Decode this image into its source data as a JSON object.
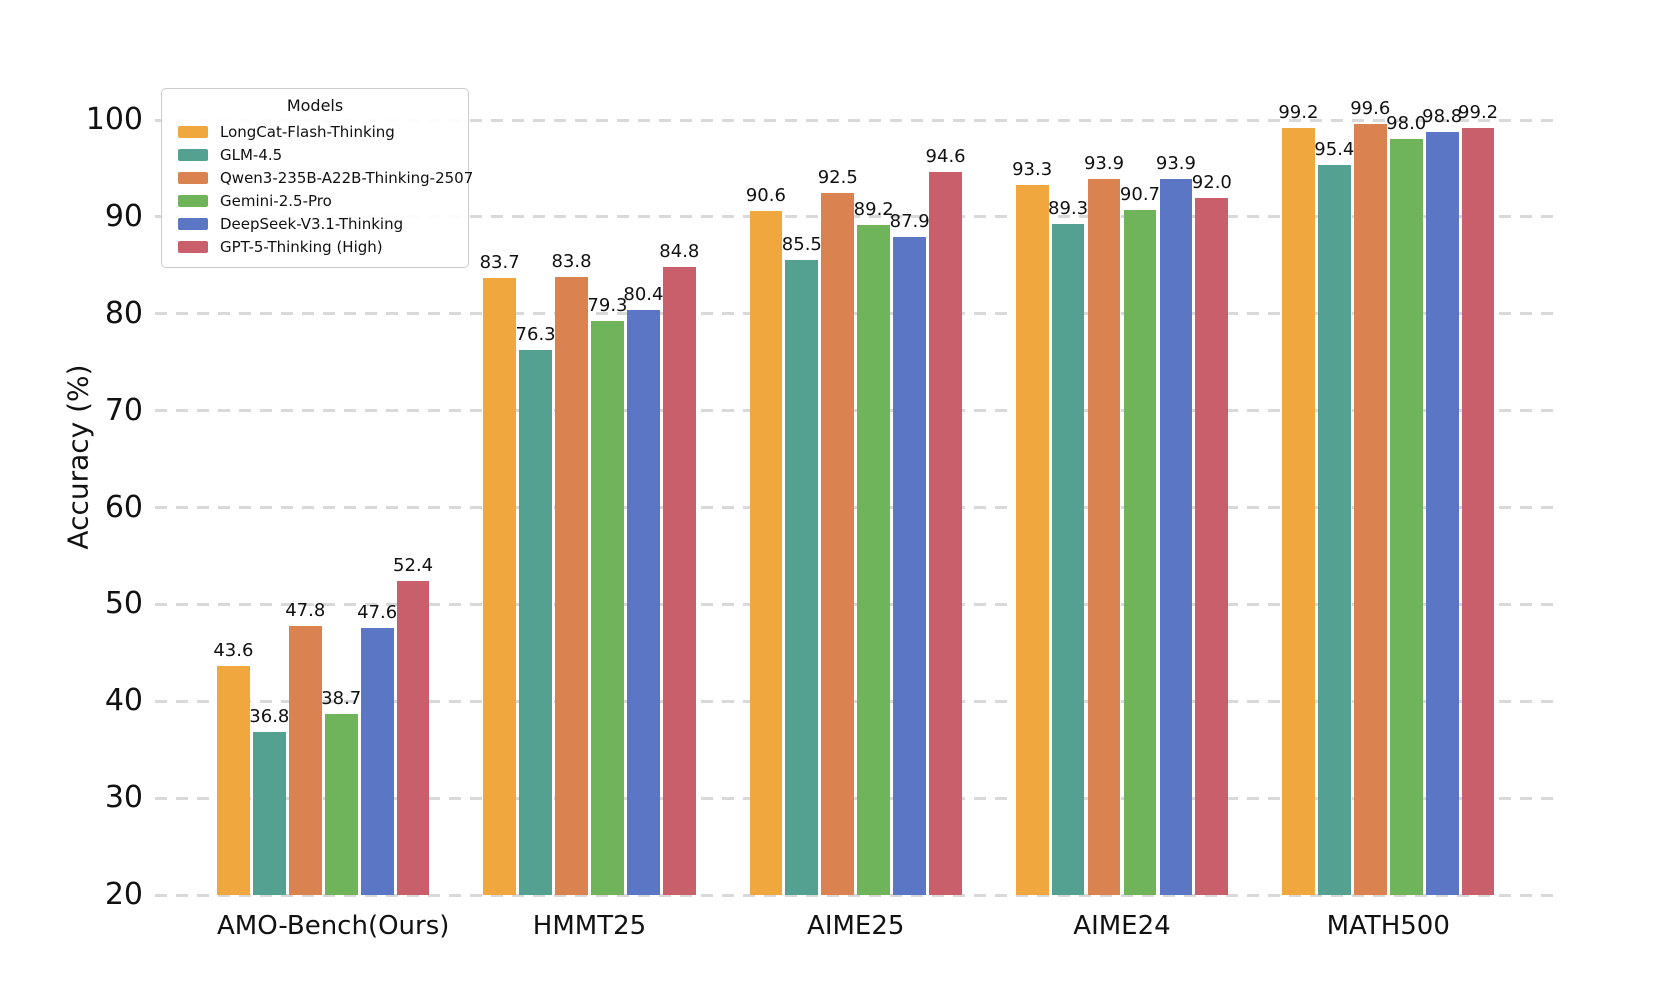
{
  "figure": {
    "background": "#ffffff"
  },
  "chart_data": {
    "type": "bar",
    "title": "",
    "ylabel": "Accuracy (%)",
    "xlabel": "",
    "ylim": [
      20,
      100
    ],
    "yticks": [
      20,
      30,
      40,
      50,
      60,
      70,
      80,
      90,
      100
    ],
    "grid": "horizontal-dashed",
    "grid_color": "#d9d9d9",
    "bar_label_decimals": 1,
    "legend_title": "Models",
    "legend_position": "upper-left",
    "categories": [
      "AMO-Bench(Ours)",
      "HMMT25",
      "AIME25",
      "AIME24",
      "MATH500"
    ],
    "series": [
      {
        "name": "LongCat-Flash-Thinking",
        "color": "#F0A73E",
        "values": [
          43.6,
          83.7,
          90.6,
          93.3,
          99.2
        ]
      },
      {
        "name": "GLM-4.5",
        "color": "#55A191",
        "values": [
          36.8,
          76.3,
          85.5,
          89.3,
          95.4
        ]
      },
      {
        "name": "Qwen3-235B-A22B-Thinking-2507",
        "color": "#DA8350",
        "values": [
          47.8,
          83.8,
          92.5,
          93.9,
          99.6
        ]
      },
      {
        "name": "Gemini-2.5-Pro",
        "color": "#6FB45A",
        "values": [
          38.7,
          79.3,
          89.2,
          90.7,
          98.0
        ]
      },
      {
        "name": "DeepSeek-V3.1-Thinking",
        "color": "#5A76C5",
        "values": [
          47.6,
          80.4,
          87.9,
          93.9,
          98.8
        ]
      },
      {
        "name": "GPT-5-Thinking (High)",
        "color": "#C95F6B",
        "values": [
          52.4,
          84.8,
          94.6,
          92.0,
          99.2
        ]
      }
    ]
  }
}
